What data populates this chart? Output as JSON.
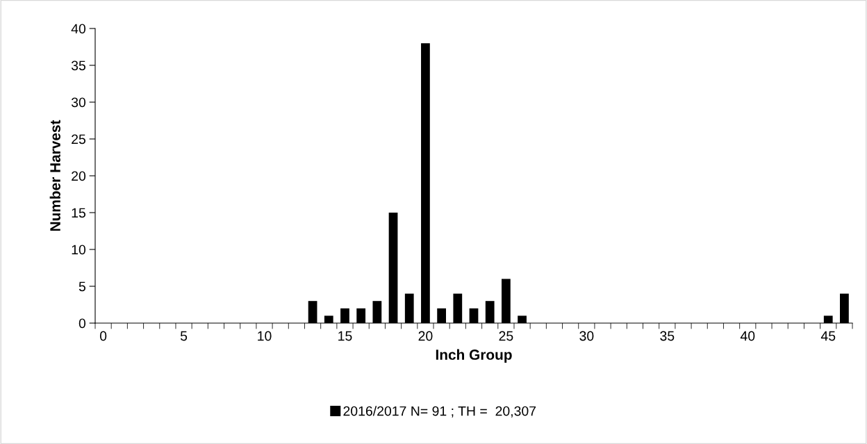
{
  "chart_data": {
    "type": "bar",
    "xlabel": "Inch Group",
    "ylabel": "Number Harvest",
    "categories": [
      "0",
      null,
      null,
      null,
      null,
      "5",
      null,
      null,
      null,
      null,
      "10",
      null,
      null,
      null,
      null,
      "15",
      null,
      null,
      null,
      null,
      "20",
      null,
      null,
      null,
      null,
      "25",
      null,
      null,
      null,
      null,
      "30",
      null,
      null,
      null,
      null,
      "35",
      null,
      null,
      null,
      null,
      "40",
      null,
      null,
      null,
      null,
      "45",
      null
    ],
    "series": [
      {
        "name": "2016/2017 N= 91 ; TH =  20,307",
        "color": "#000000",
        "values": [
          0,
          0,
          0,
          0,
          0,
          0,
          0,
          0,
          0,
          0,
          0,
          0,
          0,
          3,
          1,
          2,
          2,
          3,
          15,
          4,
          38,
          2,
          4,
          2,
          3,
          6,
          1,
          0,
          0,
          0,
          0,
          0,
          0,
          0,
          0,
          0,
          0,
          0,
          0,
          0,
          0,
          0,
          0,
          0,
          0,
          1,
          4
        ]
      }
    ],
    "ylim": [
      0,
      40
    ],
    "yticks": [
      0,
      5,
      10,
      15,
      20,
      25,
      30,
      35,
      40
    ],
    "grid": false,
    "legend": "bottom"
  }
}
